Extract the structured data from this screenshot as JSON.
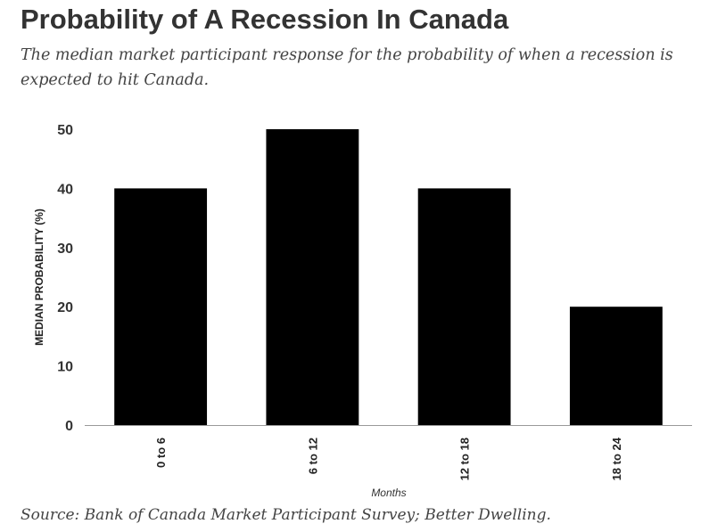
{
  "header": {
    "title": "Probability of A Recession In Canada",
    "subtitle": "The median market participant response for the probability of when a recession is expected to hit Canada."
  },
  "footer": {
    "source": "Source: Bank of Canada Market Participant Survey; Better Dwelling."
  },
  "chart_data": {
    "type": "bar",
    "categories": [
      "0 to 6",
      "6 to 12",
      "12 to 18",
      "18 to 24"
    ],
    "values": [
      40,
      50,
      40,
      20
    ],
    "xlabel": "Months",
    "ylabel": "MEDIAN PROBABILITY (%)",
    "ylim": [
      0,
      50
    ],
    "yticks": [
      0,
      10,
      20,
      30,
      40,
      50
    ],
    "grid": false,
    "legend": "none",
    "bar_color": "#000000"
  }
}
